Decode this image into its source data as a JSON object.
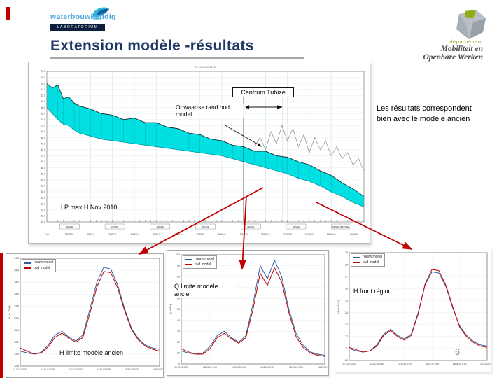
{
  "slide": {
    "title": "Extension modèle -résultats",
    "note": "Les résultats correspondent bien avec le modèle ancien",
    "page_number": "6"
  },
  "logos": {
    "wl_name": "waterbouwkundig",
    "wl_sub": "LABORATORIUM",
    "mow_dept": "departement",
    "mow_line1": "Mobiliteit en",
    "mow_line2": "Openbare Werken"
  },
  "main_annotations": {
    "centrum": "Centrum Tubize",
    "opwaartse": "Opwaartse rand oud model",
    "lp": "LP max H Nov 2010"
  },
  "colors": {
    "accent_red": "#c00000",
    "title_navy": "#1f3864",
    "band_cyan": "#00dfe2",
    "line_blue": "#2e5fa3",
    "line_red": "#c00000",
    "mow_green": "#8fae16",
    "wl_blue": "#4ea6dc"
  },
  "chart_data": [
    {
      "type": "area",
      "name": "LP max H Nov 2010",
      "title": "14-11-2010 11:00",
      "xlim": [
        0,
        14500
      ],
      "ylim": [
        20,
        70
      ],
      "x_ticks": [
        "0.0",
        "1000.0",
        "2000.0",
        "3000.0",
        "4000.0",
        "5000.0",
        "6000.0",
        "7000.0",
        "8000.0",
        "9000.0",
        "10000.0",
        "11000.0",
        "12000.0",
        "13000.0",
        "14000.0"
      ],
      "y_ticks": [
        "20.0",
        "22.0",
        "24.0",
        "26.0",
        "28.0",
        "30.0",
        "32.0",
        "34.0",
        "36.0",
        "38.0",
        "40.0",
        "42.0",
        "44.0",
        "46.0",
        "48.0",
        "50.0",
        "52.0",
        "54.0",
        "56.0",
        "58.0",
        "60.0",
        "62.0",
        "64.0",
        "66.0",
        "68.0",
        "70.0"
      ],
      "x": [
        0,
        250,
        500,
        750,
        1000,
        1250,
        1500,
        2000,
        2500,
        3000,
        3500,
        4000,
        4500,
        5000,
        5500,
        6000,
        6500,
        7000,
        7500,
        8000,
        8500,
        9000,
        9500,
        10000,
        10500,
        11000,
        11500,
        12000,
        12500,
        13000,
        13500,
        14000,
        14500
      ],
      "upper": [
        66,
        64.5,
        65.5,
        61,
        61.5,
        59.5,
        58.5,
        57.5,
        56,
        55.5,
        54,
        54.5,
        53,
        53,
        51.5,
        51,
        49.5,
        49,
        47.5,
        47,
        45.5,
        45,
        43.5,
        43.5,
        42,
        41.5,
        40,
        39,
        37,
        35.5,
        33,
        31,
        28.5
      ],
      "lower": [
        58,
        56,
        54,
        52.5,
        52,
        50.5,
        49.5,
        48.5,
        47.5,
        47,
        46.5,
        46,
        45.5,
        45,
        44.5,
        44,
        43.5,
        43,
        42.5,
        42,
        41,
        40,
        39,
        38,
        37,
        36,
        34.5,
        33.5,
        32,
        30,
        28.5,
        26.5,
        25
      ],
      "spike_x": [
        9500,
        9750,
        10000,
        10250,
        10500,
        10750,
        11000,
        11250,
        11500,
        11750,
        12000,
        12250,
        12500,
        12750,
        13000,
        13250,
        13500,
        13750,
        14000,
        14250,
        14500
      ],
      "spike_y": [
        45,
        48,
        44,
        50,
        46,
        52,
        47,
        51,
        45,
        49,
        43,
        48,
        44,
        47,
        42,
        45,
        41,
        43,
        39,
        41,
        37
      ],
      "marker_x": [
        9000,
        10800
      ],
      "station_labels": [
        "ZENNE",
        "ZENNE",
        "ZENNE",
        "ZENNE",
        "ZENNE",
        "ZENNE",
        "ZENNE BRUSSEL"
      ]
    },
    {
      "type": "line",
      "name": "H limite modèle ancien",
      "ylabel": "H (m TAW)",
      "ylim": [
        12.8,
        14.6
      ],
      "y_ticks": [
        "12.8",
        "13.0",
        "13.2",
        "13.4",
        "13.6",
        "13.8",
        "14.0",
        "14.2",
        "14.4",
        "14.6"
      ],
      "x_ticks": [
        "11/11/10 0:00",
        "12/11/10 0:00",
        "13/11/10 0:00",
        "14/11/10 0:00",
        "15/11/10 0:00",
        "16/11/10 0:00"
      ],
      "series": [
        {
          "name": "nieuw model",
          "color": "#2e5fa3",
          "values": [
            13.05,
            13.02,
            13.0,
            13.03,
            13.15,
            13.32,
            13.38,
            13.28,
            13.22,
            13.32,
            13.75,
            14.2,
            14.45,
            14.42,
            14.15,
            13.75,
            13.42,
            13.25,
            13.15,
            13.1,
            13.08
          ]
        },
        {
          "name": "oud model",
          "color": "#c00000",
          "values": [
            13.1,
            13.05,
            13.0,
            13.02,
            13.12,
            13.28,
            13.35,
            13.26,
            13.2,
            13.28,
            13.68,
            14.12,
            14.38,
            14.36,
            14.1,
            13.72,
            13.4,
            13.23,
            13.13,
            13.08,
            13.05
          ]
        }
      ]
    },
    {
      "type": "line",
      "name": "Q limite modèle ancien",
      "ylabel": "Q (m³/s)",
      "ylim": [
        0,
        100
      ],
      "y_ticks": [
        "0",
        "10",
        "20",
        "30",
        "40",
        "50",
        "60",
        "70",
        "80",
        "90",
        "100"
      ],
      "x_ticks": [
        "11/11/10 0:00",
        "12/11/10 0:00",
        "13/11/10 0:00",
        "14/11/10 0:00",
        "15/11/10 0:00",
        "16/11/10 0:00"
      ],
      "series": [
        {
          "name": "nieuw model",
          "color": "#2e5fa3",
          "values": [
            12,
            10,
            9,
            10,
            16,
            26,
            30,
            24,
            20,
            26,
            55,
            90,
            78,
            95,
            80,
            50,
            28,
            17,
            11,
            9,
            8
          ]
        },
        {
          "name": "oud model",
          "color": "#c00000",
          "values": [
            14,
            11,
            9,
            9,
            14,
            24,
            28,
            23,
            19,
            24,
            50,
            83,
            72,
            88,
            75,
            47,
            25,
            15,
            10,
            8,
            7
          ]
        }
      ]
    },
    {
      "type": "line",
      "name": "H front.région.",
      "ylabel": "H (m TAW)",
      "ylim": [
        20,
        29
      ],
      "y_ticks": [
        "20",
        "21",
        "22",
        "23",
        "24",
        "25",
        "26",
        "27",
        "28",
        "29"
      ],
      "x_ticks": [
        "11/11/10 0:00",
        "12/11/10 0:00",
        "13/11/10 0:00",
        "14/11/10 0:00",
        "15/11/10 0:00",
        "16/11/10 0:00"
      ],
      "series": [
        {
          "name": "nieuw model",
          "color": "#2e5fa3",
          "values": [
            21.0,
            20.8,
            20.7,
            20.8,
            21.3,
            22.2,
            22.6,
            22.1,
            21.8,
            22.2,
            24.0,
            26.3,
            27.4,
            27.3,
            26.2,
            24.4,
            22.9,
            22.1,
            21.6,
            21.3,
            21.2
          ]
        },
        {
          "name": "oud model",
          "color": "#c00000",
          "values": [
            21.1,
            20.9,
            20.7,
            20.8,
            21.2,
            22.1,
            22.5,
            22.0,
            21.7,
            22.1,
            23.9,
            26.4,
            27.6,
            27.5,
            26.3,
            24.5,
            22.8,
            22.0,
            21.5,
            21.2,
            21.1
          ]
        }
      ]
    }
  ]
}
